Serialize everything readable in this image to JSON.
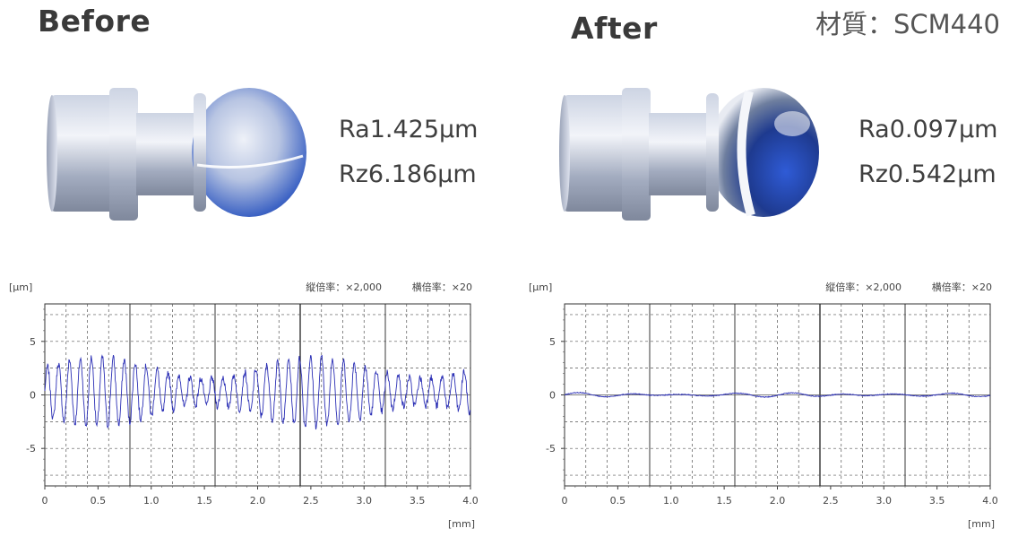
{
  "header": {
    "before_title": "Before",
    "after_title": "After",
    "material": "材質：SCM440"
  },
  "roughness": {
    "before": {
      "ra": "Ra1.425µm",
      "rz": "Rz6.186µm"
    },
    "after": {
      "ra": "Ra0.097µm",
      "rz": "Rz0.542µm"
    }
  },
  "colors": {
    "trace": "#2b2fb5",
    "grid": "#555555",
    "metal_light": "#e4e8f2",
    "metal_dark": "#8e98ac",
    "ball_blue": "#3f63c9"
  },
  "chart_data": [
    {
      "type": "line",
      "name": "before",
      "yunit": "[µm]",
      "xunit": "[mm]",
      "vertical_magnification": "縦倍率：×2,000",
      "horizontal_magnification": "横倍率：×20",
      "xlim": [
        0,
        4.0
      ],
      "ylim": [
        -8.5,
        8.5
      ],
      "xticks": [
        "0",
        "0.5",
        "1.0",
        "1.5",
        "2.0",
        "2.5",
        "3.0",
        "3.5",
        "4.0"
      ],
      "yticks": [
        5,
        0,
        -5
      ],
      "amplitude": 2.8,
      "wavelength": 0.103,
      "noise": 0.7,
      "grid": true
    },
    {
      "type": "line",
      "name": "after",
      "yunit": "[µm]",
      "xunit": "[mm]",
      "vertical_magnification": "縦倍率：×2,000",
      "horizontal_magnification": "横倍率：×20",
      "xlim": [
        0,
        4.0
      ],
      "ylim": [
        -8.5,
        8.5
      ],
      "xticks": [
        "0",
        "0.5",
        "1.0",
        "1.5",
        "2.0",
        "2.5",
        "3.0",
        "3.5",
        "4.0"
      ],
      "yticks": [
        5,
        0,
        -5
      ],
      "amplitude": 0.15,
      "wavelength": 0.5,
      "noise": 0.08,
      "grid": true
    }
  ]
}
